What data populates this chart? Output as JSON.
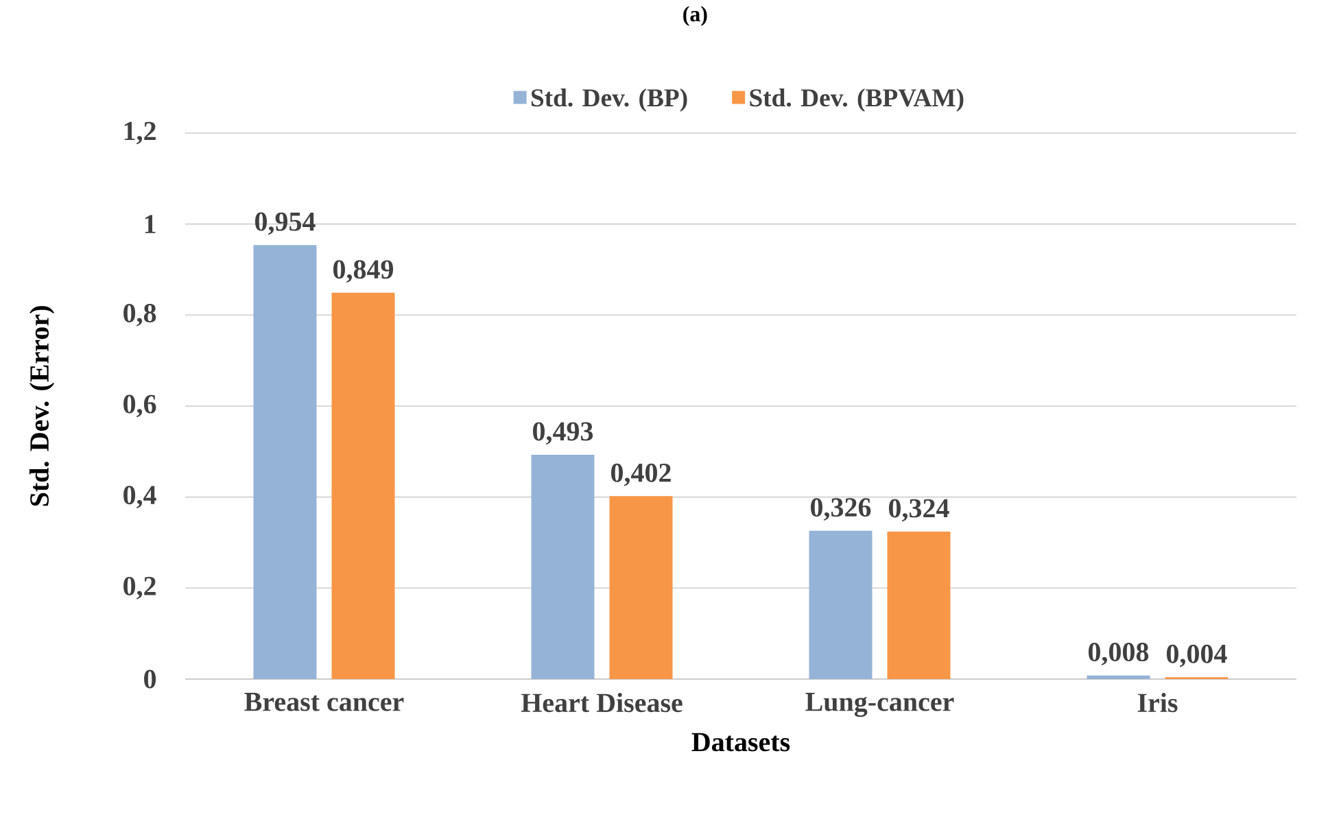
{
  "chart_data": {
    "type": "bar",
    "title": "(a)",
    "xlabel": "Datasets",
    "ylabel": "Std. Dev. (Error)",
    "categories": [
      "Breast cancer",
      "Heart Disease",
      "Lung-cancer",
      "Iris"
    ],
    "series": [
      {
        "name": "Std. Dev. (BP)",
        "color": "#95b3d7",
        "values": [
          0.954,
          0.493,
          0.326,
          0.008
        ],
        "value_labels": [
          "0,954",
          "0,493",
          "0,326",
          "0,008"
        ]
      },
      {
        "name": "Std. Dev. (BPVAM)",
        "color": "#f79646",
        "values": [
          0.849,
          0.402,
          0.324,
          0.004
        ],
        "value_labels": [
          "0,849",
          "0,402",
          "0,324",
          "0,004"
        ]
      }
    ],
    "ylim": [
      0,
      1.2
    ],
    "yticks": [
      0,
      {
        "value": 0.2,
        "label": "0,2"
      },
      {
        "value": 0.4,
        "label": "0,4"
      },
      {
        "value": 0.6,
        "label": "0,6"
      },
      {
        "value": 0.8,
        "label": "0,8"
      },
      1,
      {
        "value": 1.2,
        "label": "1,2"
      }
    ],
    "grid": "y",
    "legend": "top"
  }
}
